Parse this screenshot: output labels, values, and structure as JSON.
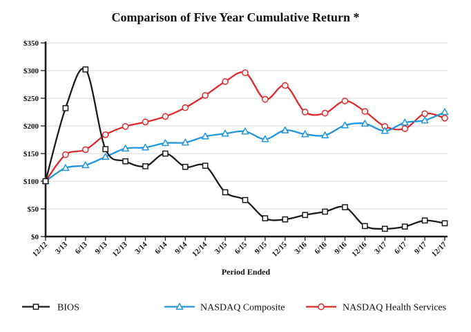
{
  "page": {
    "background": "#ffffff"
  },
  "styles": {
    "axis_color": "#1a1a1a",
    "grid_color": "#d9d9d9",
    "bios_color": "#1a1a1a",
    "composite_color": "#2095e0",
    "health_color": "#e02828"
  },
  "chart_data": {
    "type": "line",
    "title": "Comparison of Five Year Cumulative Return *",
    "xlabel": "Period Ended",
    "ylabel": "",
    "ylim": [
      0,
      350
    ],
    "grid": "horizontal",
    "legend_position": "bottom",
    "yticks": [
      {
        "value": 0,
        "label": "$0"
      },
      {
        "value": 50,
        "label": "$50"
      },
      {
        "value": 100,
        "label": "$100"
      },
      {
        "value": 150,
        "label": "$150"
      },
      {
        "value": 200,
        "label": "$200"
      },
      {
        "value": 250,
        "label": "$250"
      },
      {
        "value": 300,
        "label": "$300"
      },
      {
        "value": 350,
        "label": "$350"
      }
    ],
    "categories": [
      "12/12",
      "3/13",
      "6/13",
      "9/13",
      "12/13",
      "3/14",
      "6/14",
      "9/14",
      "12/14",
      "3/15",
      "6/15",
      "9/15",
      "12/15",
      "3/16",
      "6/16",
      "9/16",
      "12/16",
      "3/17",
      "6/17",
      "9/17",
      "12/17"
    ],
    "series": [
      {
        "name": "BIOS",
        "marker": "square",
        "color": "#1a1a1a",
        "values": [
          100,
          232,
          302,
          158,
          136,
          127,
          150,
          126,
          128,
          80,
          66,
          33,
          31,
          39,
          45,
          53,
          19,
          14,
          18,
          29,
          24
        ]
      },
      {
        "name": "NASDAQ Composite",
        "marker": "triangle",
        "color": "#2095e0",
        "values": [
          100,
          124,
          129,
          144,
          159,
          161,
          169,
          170,
          181,
          186,
          190,
          176,
          192,
          185,
          183,
          201,
          204,
          191,
          206,
          210,
          225
        ]
      },
      {
        "name": "NASDAQ Health Services",
        "marker": "circle",
        "color": "#e02828",
        "values": [
          100,
          148,
          157,
          184,
          199,
          207,
          217,
          233,
          255,
          280,
          296,
          248,
          273,
          225,
          223,
          245,
          226,
          199,
          195,
          222,
          214
        ]
      }
    ]
  }
}
